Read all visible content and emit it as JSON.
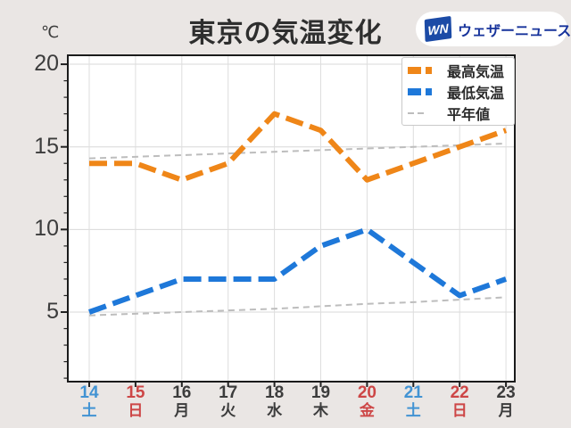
{
  "header": {
    "title": "東京の気温変化",
    "unit_label": "℃",
    "logo": {
      "badge": "WN",
      "text": "ウェザーニュース"
    }
  },
  "legend": {
    "items": [
      {
        "label": "最高気温",
        "color": "#ef8618",
        "style": "thick-dash"
      },
      {
        "label": "最低気温",
        "color": "#1e78d9",
        "style": "thick-dash"
      },
      {
        "label": "平年値",
        "color": "#bdbdbd",
        "style": "thin-dash"
      }
    ]
  },
  "chart_data": {
    "type": "line",
    "title": "東京の気温変化",
    "ylabel": "℃",
    "grid": true,
    "legend_position": "top-right",
    "x_dates": [
      "14",
      "15",
      "16",
      "17",
      "18",
      "19",
      "20",
      "21",
      "22",
      "23"
    ],
    "x_weekdays": [
      "土",
      "日",
      "月",
      "火",
      "水",
      "木",
      "金",
      "土",
      "日",
      "月"
    ],
    "x_label_colors": [
      "blue",
      "red",
      "dark",
      "dark",
      "dark",
      "dark",
      "red",
      "blue",
      "red",
      "dark"
    ],
    "yticks": [
      20,
      15,
      10,
      5
    ],
    "ylim": [
      0.8,
      20.5
    ],
    "series": [
      {
        "name": "最高気温",
        "color": "#ef8618",
        "dash": "thick",
        "values": [
          14,
          14,
          13,
          14,
          17,
          16,
          13,
          14,
          15,
          16
        ]
      },
      {
        "name": "最低気温",
        "color": "#1e78d9",
        "dash": "thick",
        "values": [
          5,
          6,
          7,
          7,
          7,
          9,
          10,
          8,
          6,
          7
        ]
      },
      {
        "name": "平年値(最高)",
        "color": "#bdbdbd",
        "dash": "thin",
        "values": [
          14.3,
          14.4,
          14.5,
          14.6,
          14.7,
          14.8,
          14.9,
          15.0,
          15.1,
          15.2
        ]
      },
      {
        "name": "平年値(最低)",
        "color": "#bdbdbd",
        "dash": "thin",
        "values": [
          4.8,
          4.9,
          5.0,
          5.1,
          5.2,
          5.35,
          5.5,
          5.6,
          5.75,
          5.9
        ]
      }
    ],
    "colors": {
      "saturday": "#4293d3",
      "sunday_holiday": "#cd4646",
      "weekday": "#3c3c3c"
    }
  }
}
